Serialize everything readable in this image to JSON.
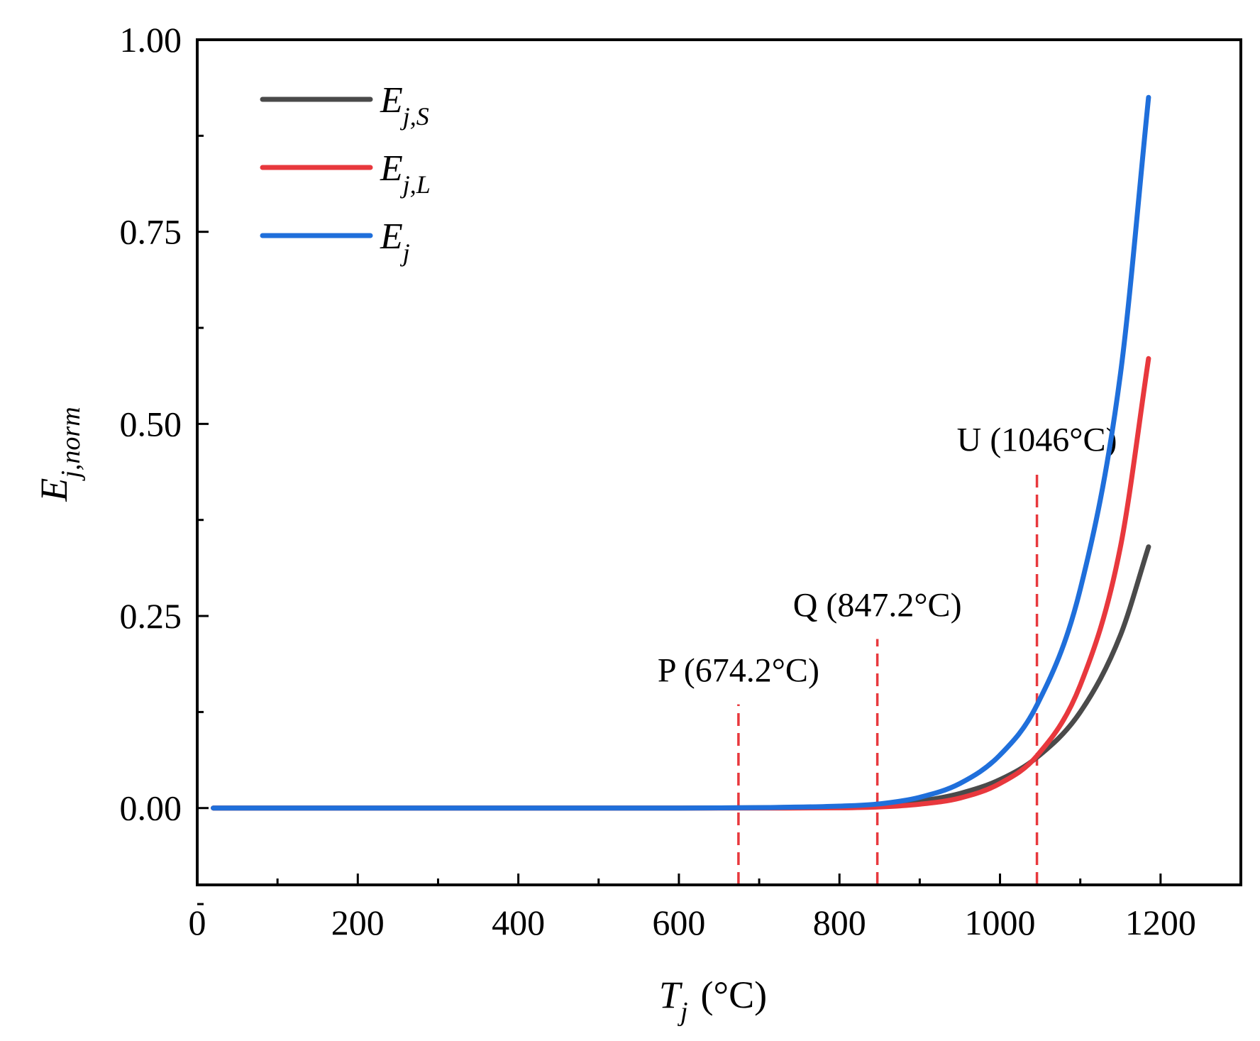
{
  "chart_data": {
    "type": "line",
    "xlabel": {
      "main": "T",
      "sub": "j",
      "unit": "(°C)"
    },
    "ylabel": {
      "main": "E",
      "sub": "j,norm"
    },
    "xlim": [
      0,
      1300
    ],
    "ylim": [
      -0.1,
      1.0
    ],
    "x_ticks": [
      0,
      200,
      400,
      600,
      800,
      1000,
      1200
    ],
    "x_tick_labels": [
      "0",
      "200",
      "400",
      "600",
      "800",
      "1000",
      "1200"
    ],
    "x_minor_ticks": [
      100,
      300,
      500,
      700,
      900,
      1100
    ],
    "y_ticks": [
      0.0,
      0.25,
      0.5,
      0.75,
      1.0
    ],
    "y_tick_labels": [
      "0.00",
      "0.25",
      "0.50",
      "0.75",
      "1.00"
    ],
    "y_minor_ticks": [
      -0.125,
      0.125,
      0.375,
      0.625,
      0.875
    ],
    "grid": false,
    "legend_position": "top-left",
    "series": [
      {
        "name": "E_j,S",
        "label_main": "E",
        "label_sub": "j,S",
        "color": "#4a4a4a",
        "x": [
          20,
          600,
          700,
          800,
          850,
          900,
          950,
          1000,
          1046,
          1100,
          1150,
          1185
        ],
        "y": [
          0.0,
          0.0,
          0.0005,
          0.002,
          0.004,
          0.009,
          0.019,
          0.037,
          0.066,
          0.125,
          0.225,
          0.34
        ]
      },
      {
        "name": "E_j,L",
        "label_main": "E",
        "label_sub": "j,L",
        "color": "#e8383d",
        "x": [
          20,
          600,
          700,
          800,
          850,
          900,
          950,
          1000,
          1046,
          1100,
          1150,
          1185
        ],
        "y": [
          0.0,
          0.0,
          0.0,
          0.0003,
          0.0015,
          0.005,
          0.013,
          0.032,
          0.068,
          0.16,
          0.34,
          0.585
        ]
      },
      {
        "name": "E_j",
        "label_main": "E",
        "label_sub": "j",
        "color": "#1f6fdb",
        "x": [
          20,
          600,
          700,
          800,
          850,
          900,
          950,
          1000,
          1046,
          1100,
          1150,
          1185
        ],
        "y": [
          0.0,
          0.0,
          0.0006,
          0.0025,
          0.0055,
          0.014,
          0.032,
          0.069,
          0.134,
          0.285,
          0.565,
          0.925
        ]
      }
    ],
    "annotations": [
      {
        "label": "P (674.2°C)",
        "x": 674.2,
        "y_top": 0.135
      },
      {
        "label": "Q (847.2°C)",
        "x": 847.2,
        "y_top": 0.22
      },
      {
        "label": "U (1046°C)",
        "x": 1046,
        "y_top": 0.435
      }
    ],
    "annotation_color": "#e8383d"
  }
}
